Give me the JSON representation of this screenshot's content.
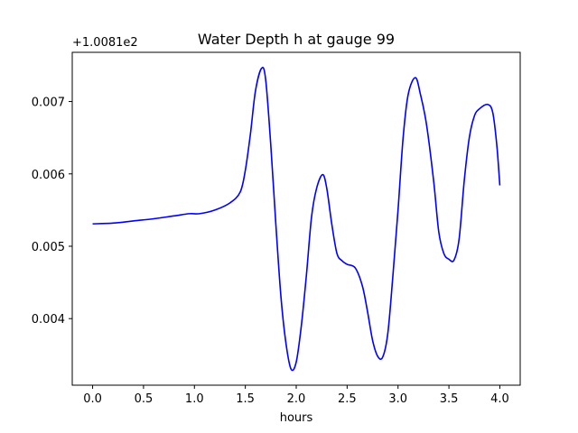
{
  "chart_data": {
    "type": "line",
    "title": "Water Depth h at gauge 99",
    "xlabel": "hours",
    "ylabel": "",
    "y_offset_label": "+1.0081e2",
    "xlim": [
      -0.2,
      4.2
    ],
    "ylim": [
      0.00308,
      0.00768
    ],
    "x_ticks": [
      0.0,
      0.5,
      1.0,
      1.5,
      2.0,
      2.5,
      3.0,
      3.5,
      4.0
    ],
    "x_tick_labels": [
      "0.0",
      "0.5",
      "1.0",
      "1.5",
      "2.0",
      "2.5",
      "3.0",
      "3.5",
      "4.0"
    ],
    "y_ticks": [
      0.004,
      0.005,
      0.006,
      0.007
    ],
    "y_tick_labels": [
      "0.004",
      "0.005",
      "0.006",
      "0.007"
    ],
    "grid": false,
    "series": [
      {
        "color": "#0000ff",
        "x": [
          0.0,
          0.2,
          0.4,
          0.6,
          0.8,
          0.95,
          1.05,
          1.2,
          1.35,
          1.45,
          1.5,
          1.55,
          1.6,
          1.66,
          1.7,
          1.75,
          1.8,
          1.85,
          1.9,
          1.95,
          2.0,
          2.05,
          2.1,
          2.15,
          2.2,
          2.26,
          2.3,
          2.35,
          2.4,
          2.45,
          2.5,
          2.58,
          2.65,
          2.7,
          2.75,
          2.8,
          2.85,
          2.9,
          2.95,
          3.0,
          3.05,
          3.1,
          3.17,
          3.22,
          3.28,
          3.35,
          3.4,
          3.45,
          3.5,
          3.55,
          3.6,
          3.65,
          3.7,
          3.75,
          3.8,
          3.88,
          3.93,
          3.97,
          4.0
        ],
        "y": [
          0.00531,
          0.00532,
          0.00535,
          0.00538,
          0.00542,
          0.00545,
          0.00545,
          0.0055,
          0.0056,
          0.00575,
          0.00605,
          0.00655,
          0.00715,
          0.00746,
          0.0073,
          0.0064,
          0.0053,
          0.0043,
          0.00365,
          0.0033,
          0.0034,
          0.0039,
          0.0046,
          0.0054,
          0.0058,
          0.00599,
          0.0058,
          0.0053,
          0.0049,
          0.0048,
          0.00475,
          0.0047,
          0.00445,
          0.0041,
          0.0037,
          0.00348,
          0.00347,
          0.0038,
          0.0046,
          0.0055,
          0.0065,
          0.0071,
          0.00733,
          0.0071,
          0.00668,
          0.0059,
          0.0052,
          0.0049,
          0.00482,
          0.00481,
          0.0051,
          0.0059,
          0.0065,
          0.0068,
          0.0069,
          0.00696,
          0.00685,
          0.0064,
          0.00584
        ]
      }
    ]
  }
}
